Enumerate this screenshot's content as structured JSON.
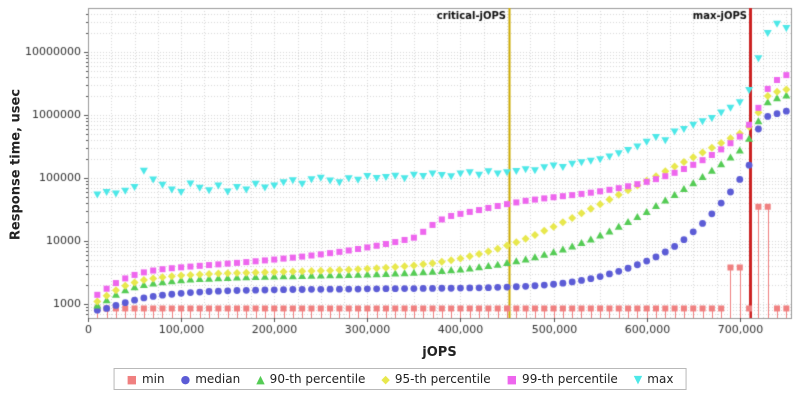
{
  "chart_data": {
    "type": "scatter",
    "title": "",
    "xlabel": "jOPS",
    "ylabel": "Response time, usec",
    "grid": true,
    "legend_position": "bottom",
    "x_axis": {
      "min": 0,
      "max": 755000,
      "minor_step": 25000,
      "ticks": [
        0,
        100000,
        200000,
        300000,
        400000,
        500000,
        600000,
        700000
      ],
      "tick_labels": [
        "0",
        "100,000",
        "200,000",
        "300,000",
        "400,000",
        "500,000",
        "600,000",
        "700,000"
      ]
    },
    "y_axis": {
      "scale": "log",
      "min": 600,
      "max": 50000000,
      "ticks": [
        1000,
        10000,
        100000,
        1000000,
        10000000
      ],
      "tick_labels": [
        "1000",
        "10000",
        "100000",
        "1000000",
        "10000000"
      ]
    },
    "annotations": [
      {
        "label": "critical-jOPS",
        "x": 452000,
        "color": "#ccaa00",
        "width": 2
      },
      {
        "label": "max-jOPS",
        "x": 711000,
        "color": "#cc2222",
        "width": 3
      }
    ],
    "x": [
      10000,
      20000,
      30000,
      40000,
      50000,
      60000,
      70000,
      80000,
      90000,
      100000,
      110000,
      120000,
      130000,
      140000,
      150000,
      160000,
      170000,
      180000,
      190000,
      200000,
      210000,
      220000,
      230000,
      240000,
      250000,
      260000,
      270000,
      280000,
      290000,
      300000,
      310000,
      320000,
      330000,
      340000,
      350000,
      360000,
      370000,
      380000,
      390000,
      400000,
      410000,
      420000,
      430000,
      440000,
      450000,
      460000,
      470000,
      480000,
      490000,
      500000,
      510000,
      520000,
      530000,
      540000,
      550000,
      560000,
      570000,
      580000,
      590000,
      600000,
      610000,
      620000,
      630000,
      640000,
      650000,
      660000,
      670000,
      680000,
      690000,
      700000,
      710000,
      720000,
      730000,
      740000,
      750000
    ],
    "series": [
      {
        "name": "min",
        "marker": "square",
        "color": "#f08080",
        "values": [
          850,
          850,
          850,
          850,
          850,
          850,
          850,
          850,
          850,
          850,
          850,
          850,
          850,
          850,
          850,
          850,
          850,
          850,
          850,
          850,
          850,
          850,
          850,
          850,
          850,
          850,
          850,
          850,
          850,
          850,
          850,
          850,
          850,
          850,
          850,
          850,
          850,
          850,
          850,
          850,
          850,
          850,
          850,
          850,
          850,
          850,
          850,
          850,
          850,
          850,
          850,
          850,
          850,
          850,
          850,
          850,
          850,
          850,
          850,
          850,
          850,
          850,
          850,
          850,
          850,
          850,
          850,
          850,
          3800,
          3800,
          850,
          35000,
          35000,
          850,
          850
        ]
      },
      {
        "name": "median",
        "marker": "circle",
        "color": "#5c5cd6",
        "values": [
          800,
          850,
          950,
          1050,
          1150,
          1250,
          1320,
          1380,
          1430,
          1480,
          1520,
          1550,
          1580,
          1600,
          1620,
          1640,
          1650,
          1660,
          1670,
          1680,
          1690,
          1700,
          1700,
          1710,
          1710,
          1720,
          1720,
          1730,
          1730,
          1740,
          1740,
          1750,
          1750,
          1760,
          1760,
          1770,
          1770,
          1780,
          1780,
          1790,
          1800,
          1810,
          1820,
          1840,
          1860,
          1880,
          1910,
          1950,
          2000,
          2060,
          2140,
          2240,
          2370,
          2530,
          2730,
          3000,
          3300,
          3700,
          4200,
          4800,
          5600,
          6700,
          8200,
          10500,
          14000,
          19000,
          27000,
          40000,
          60000,
          95000,
          160000,
          600000,
          950000,
          1050000,
          1150000
        ]
      },
      {
        "name": "90-th percentile",
        "marker": "triangle-up",
        "color": "#55cc55",
        "values": [
          950,
          1150,
          1400,
          1650,
          1850,
          2000,
          2120,
          2220,
          2300,
          2380,
          2440,
          2490,
          2530,
          2570,
          2600,
          2630,
          2660,
          2690,
          2710,
          2730,
          2750,
          2770,
          2790,
          2810,
          2830,
          2850,
          2870,
          2890,
          2910,
          2940,
          2970,
          3000,
          3040,
          3080,
          3130,
          3190,
          3260,
          3340,
          3430,
          3540,
          3670,
          3820,
          4000,
          4210,
          4460,
          4760,
          5110,
          5530,
          6030,
          6630,
          7350,
          8220,
          9280,
          10600,
          12200,
          14200,
          16800,
          20000,
          24000,
          29000,
          36000,
          44000,
          54000,
          67000,
          83000,
          104000,
          131000,
          166000,
          212000,
          273000,
          420000,
          800000,
          1600000,
          1850000,
          2050000
        ]
      },
      {
        "name": "95-th percentile",
        "marker": "diamond",
        "color": "#e8e84d",
        "values": [
          1100,
          1350,
          1650,
          1950,
          2200,
          2400,
          2550,
          2670,
          2760,
          2840,
          2900,
          2950,
          3000,
          3040,
          3080,
          3110,
          3140,
          3170,
          3200,
          3230,
          3260,
          3290,
          3320,
          3350,
          3380,
          3420,
          3460,
          3510,
          3560,
          3620,
          3690,
          3770,
          3860,
          3970,
          4100,
          4260,
          4450,
          4680,
          4960,
          5300,
          5710,
          6210,
          6820,
          7560,
          8460,
          9560,
          10900,
          12500,
          14500,
          16900,
          19800,
          23300,
          27500,
          32500,
          38500,
          45600,
          54100,
          64200,
          76200,
          90500,
          107000,
          128000,
          152000,
          180000,
          214000,
          254000,
          302000,
          359000,
          427000,
          507000,
          650000,
          1100000,
          2000000,
          2350000,
          2550000
        ]
      },
      {
        "name": "99-th percentile",
        "marker": "square",
        "color": "#ee66ee",
        "values": [
          1400,
          1750,
          2150,
          2550,
          2900,
          3180,
          3400,
          3570,
          3700,
          3820,
          3930,
          4040,
          4150,
          4260,
          4380,
          4500,
          4630,
          4770,
          4920,
          5080,
          5260,
          5450,
          5660,
          5890,
          6140,
          6420,
          6730,
          7080,
          7470,
          7910,
          8410,
          8980,
          9630,
          10400,
          11300,
          14000,
          18000,
          22000,
          25000,
          27000,
          29000,
          31000,
          33500,
          36000,
          38500,
          41000,
          43500,
          45500,
          47500,
          49500,
          51500,
          53500,
          56000,
          58500,
          61500,
          65000,
          69000,
          74000,
          80000,
          87000,
          96000,
          107000,
          121000,
          139000,
          162000,
          192000,
          232000,
          285000,
          357000,
          455000,
          700000,
          1300000,
          2600000,
          3600000,
          4300000
        ]
      },
      {
        "name": "max",
        "marker": "triangle-down",
        "color": "#4de8e8",
        "values": [
          55000,
          60000,
          57000,
          63000,
          72000,
          130000,
          95000,
          78000,
          66000,
          60000,
          82000,
          70000,
          64000,
          76000,
          61000,
          72000,
          66000,
          81000,
          71000,
          76000,
          86000,
          92000,
          81000,
          96000,
          101000,
          91000,
          86000,
          99000,
          94000,
          108000,
          100000,
          104000,
          109000,
          99000,
          113000,
          108000,
          118000,
          112000,
          107000,
          118000,
          123000,
          113000,
          128000,
          118000,
          123000,
          129000,
          138000,
          133000,
          148000,
          158000,
          149000,
          168000,
          178000,
          188000,
          199000,
          219000,
          248000,
          278000,
          318000,
          378000,
          448000,
          398000,
          548000,
          598000,
          698000,
          798000,
          898000,
          1100000,
          1300000,
          1600000,
          2500000,
          8000000,
          20000000,
          28000000,
          24000000
        ]
      }
    ]
  }
}
